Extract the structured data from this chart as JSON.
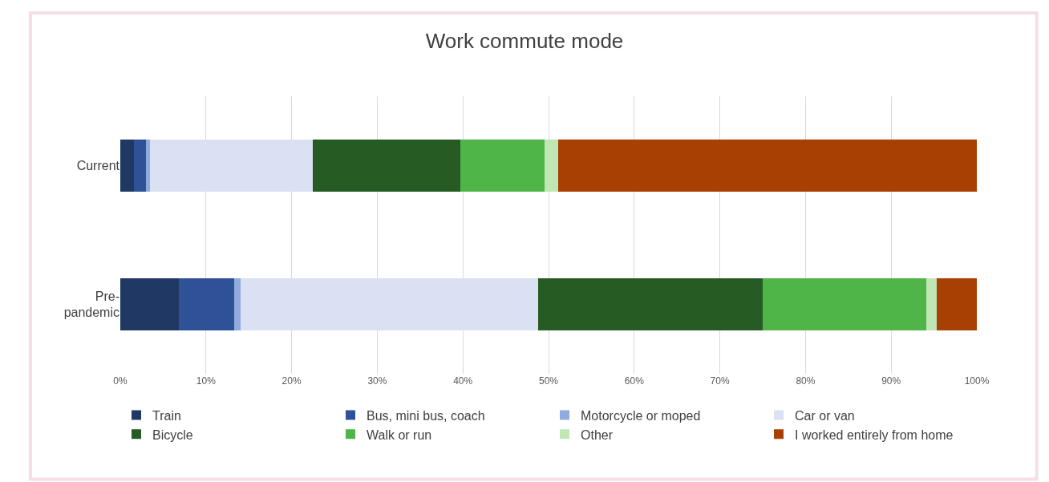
{
  "chart_data": {
    "type": "bar",
    "title": "Work commute mode",
    "orientation": "horizontal",
    "stacked": true,
    "categories": [
      "Current",
      "Pre-pandemic"
    ],
    "series": [
      {
        "name": "Train",
        "color": "#203864",
        "values": [
          1.6,
          6.8
        ]
      },
      {
        "name": "Bus, mini bus, coach",
        "color": "#2f5197",
        "values": [
          1.4,
          6.5
        ]
      },
      {
        "name": "Motorcycle or moped",
        "color": "#8faadc",
        "values": [
          0.5,
          0.7
        ]
      },
      {
        "name": "Car or van",
        "color": "#dae1f2",
        "values": [
          19.0,
          34.8
        ]
      },
      {
        "name": "Bicycle",
        "color": "#265b23",
        "values": [
          17.2,
          26.2
        ]
      },
      {
        "name": "Walk or run",
        "color": "#4fb548",
        "values": [
          9.8,
          19.1
        ]
      },
      {
        "name": "Other",
        "color": "#bfe6b4",
        "values": [
          1.6,
          1.2
        ]
      },
      {
        "name": "I worked entirely from home",
        "color": "#a83f03",
        "values": [
          48.9,
          4.7
        ]
      }
    ],
    "xlim": [
      0,
      100
    ],
    "xticks": [
      {
        "value": 0,
        "label": "0%"
      },
      {
        "value": 10,
        "label": "10%"
      },
      {
        "value": 20,
        "label": "20%"
      },
      {
        "value": 30,
        "label": "30%"
      },
      {
        "value": 40,
        "label": "40%"
      },
      {
        "value": 50,
        "label": "50%"
      },
      {
        "value": 60,
        "label": "60%"
      },
      {
        "value": 70,
        "label": "70%"
      },
      {
        "value": 80,
        "label": "80%"
      },
      {
        "value": 90,
        "label": "90%"
      },
      {
        "value": 100,
        "label": "100%"
      }
    ],
    "grid": "x",
    "legend": "bottom"
  }
}
